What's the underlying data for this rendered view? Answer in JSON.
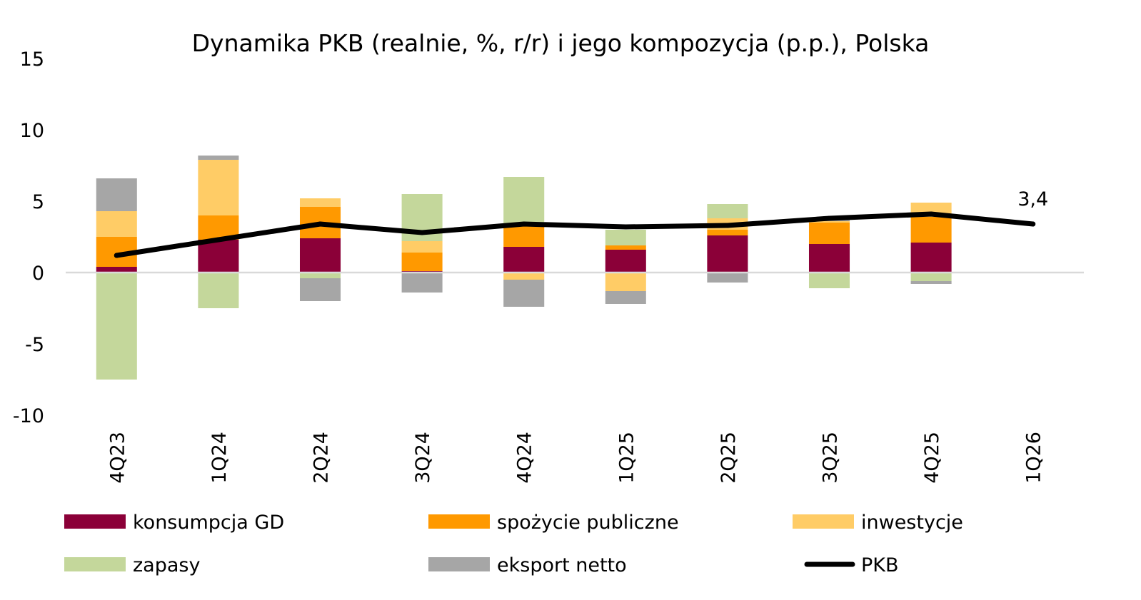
{
  "chart_data": {
    "type": "bar",
    "stacked": true,
    "title": "Dynamika PKB (realnie, %, r/r) i jego kompozycja (p.p.), Polska",
    "xlabel": "",
    "ylabel": "",
    "ylim": [
      -10,
      15
    ],
    "yticks": [
      "15",
      "10",
      "5",
      "0",
      "-5",
      "-10"
    ],
    "categories": [
      "4Q23",
      "1Q24",
      "2Q24",
      "3Q24",
      "4Q24",
      "1Q25",
      "2Q25",
      "3Q25",
      "4Q25",
      "1Q26"
    ],
    "series": [
      {
        "name": "konsumpcja GD",
        "kind": "bar",
        "color": "#8B0038",
        "values": [
          0.4,
          2.3,
          2.4,
          0.1,
          1.8,
          1.6,
          2.6,
          2.0,
          2.1,
          null
        ]
      },
      {
        "name": "spożycie publiczne",
        "kind": "bar",
        "color": "#FF9900",
        "values": [
          2.1,
          1.7,
          2.2,
          1.3,
          1.5,
          0.3,
          0.4,
          1.5,
          1.8,
          null
        ]
      },
      {
        "name": "inwestycje",
        "kind": "bar",
        "color": "#FFCC66",
        "values": [
          1.8,
          3.9,
          0.6,
          0.8,
          -0.5,
          -1.3,
          0.8,
          0.1,
          1.0,
          null
        ]
      },
      {
        "name": "zapasy",
        "kind": "bar",
        "color": "#C4D79B",
        "values": [
          -7.5,
          -2.5,
          -0.4,
          3.3,
          3.4,
          1.1,
          1.0,
          -1.1,
          -0.6,
          null
        ]
      },
      {
        "name": "eksport netto",
        "kind": "bar",
        "color": "#A6A6A6",
        "values": [
          2.3,
          0.3,
          -1.6,
          -1.4,
          -1.9,
          -0.9,
          -0.7,
          0.2,
          -0.2,
          null
        ]
      },
      {
        "name": "PKB",
        "kind": "line",
        "color": "#000000",
        "values": [
          1.2,
          2.3,
          3.4,
          2.8,
          3.4,
          3.2,
          3.3,
          3.8,
          4.1,
          3.4
        ]
      }
    ],
    "annotations": [
      {
        "category": "1Q26",
        "series": "PKB",
        "text": "3,4"
      }
    ],
    "grid": false,
    "legend_position": "bottom"
  }
}
